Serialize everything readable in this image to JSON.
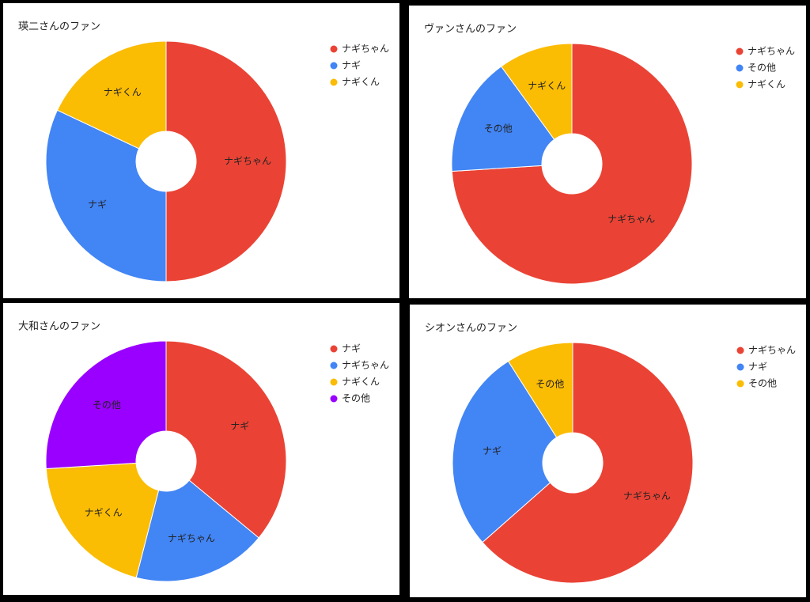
{
  "chart_data": [
    {
      "type": "donut",
      "title": "瑛二さんのファン",
      "categories": [
        "ナギちゃん",
        "ナギ",
        "ナギくん"
      ],
      "values": [
        50,
        32,
        18
      ],
      "colors": [
        "#ea4335",
        "#4285f4",
        "#fbbc04"
      ]
    },
    {
      "type": "donut",
      "title": "ヴァンさんのファン",
      "categories": [
        "ナギちゃん",
        "その他",
        "ナギくん"
      ],
      "values": [
        74,
        16,
        10
      ],
      "colors": [
        "#ea4335",
        "#4285f4",
        "#fbbc04"
      ]
    },
    {
      "type": "donut",
      "title": "大和さんのファン",
      "categories": [
        "ナギ",
        "ナギちゃん",
        "ナギくん",
        "その他"
      ],
      "values": [
        36,
        18,
        20,
        26
      ],
      "colors": [
        "#ea4335",
        "#4285f4",
        "#fbbc04",
        "#9900ff"
      ]
    },
    {
      "type": "donut",
      "title": "シオンさんのファン",
      "categories": [
        "ナギちゃん",
        "ナギ",
        "その他"
      ],
      "values": [
        63.5,
        27.5,
        9
      ],
      "colors": [
        "#ea4335",
        "#4285f4",
        "#fbbc04"
      ]
    }
  ]
}
